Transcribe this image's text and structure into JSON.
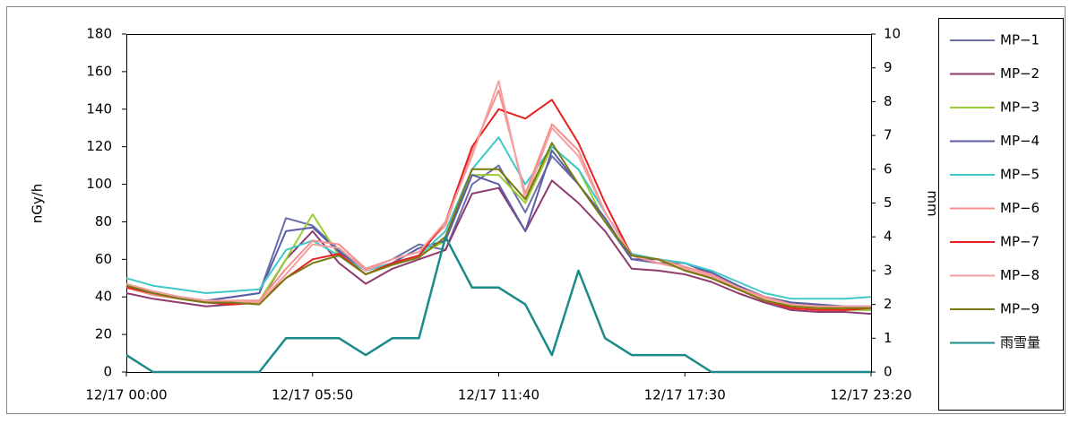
{
  "chart_data": {
    "type": "line",
    "ylabel": "nGy/h",
    "y2label": "mm",
    "categories": [
      "12/17 00:00",
      null,
      null,
      null,
      null,
      null,
      null,
      "12/17 05:50",
      null,
      null,
      null,
      null,
      null,
      null,
      "12/17 11:40",
      null,
      null,
      null,
      null,
      null,
      null,
      "12/17 17:30",
      null,
      null,
      null,
      null,
      null,
      null,
      "12/17 23:20"
    ],
    "ylim": [
      0,
      180
    ],
    "yticks": [
      0,
      20,
      40,
      60,
      80,
      100,
      120,
      140,
      160,
      180
    ],
    "y2lim": [
      0,
      10
    ],
    "y2ticks": [
      0,
      1,
      2,
      3,
      4,
      5,
      6,
      7,
      8,
      9,
      10
    ],
    "legend": "right",
    "series": [
      {
        "name": "MP−1",
        "color": "#6b6fa8",
        "values": [
          45,
          42,
          40,
          38,
          40,
          42,
          82,
          78,
          65,
          55,
          60,
          68,
          65,
          100,
          110,
          85,
          115,
          100,
          80,
          60,
          58,
          58,
          52,
          45,
          40,
          37,
          36,
          35,
          35
        ]
      },
      {
        "name": "MP−2",
        "color": "#8e3a6e",
        "values": [
          42,
          39,
          37,
          35,
          36,
          37,
          60,
          75,
          58,
          47,
          55,
          60,
          65,
          95,
          98,
          75,
          102,
          90,
          75,
          55,
          54,
          52,
          48,
          42,
          37,
          33,
          32,
          32,
          31
        ]
      },
      {
        "name": "MP−3",
        "color": "#9acd32",
        "values": [
          46,
          42,
          39,
          37,
          38,
          38,
          60,
          84,
          62,
          52,
          58,
          62,
          70,
          105,
          105,
          90,
          120,
          108,
          80,
          62,
          60,
          54,
          50,
          44,
          38,
          35,
          34,
          33,
          33
        ]
      },
      {
        "name": "MP−4",
        "color": "#5b5ea6",
        "values": [
          46,
          43,
          40,
          38,
          40,
          42,
          75,
          77,
          64,
          54,
          58,
          66,
          70,
          105,
          100,
          75,
          118,
          100,
          82,
          60,
          60,
          58,
          53,
          46,
          40,
          37,
          36,
          35,
          34
        ]
      },
      {
        "name": "MP−5",
        "color": "#40c8c8",
        "values": [
          50,
          46,
          44,
          42,
          43,
          44,
          65,
          70,
          62,
          54,
          58,
          62,
          75,
          108,
          125,
          100,
          120,
          108,
          85,
          63,
          60,
          58,
          54,
          48,
          42,
          39,
          39,
          39,
          40
        ]
      },
      {
        "name": "MP−6",
        "color": "#f4908e",
        "values": [
          45,
          41,
          39,
          37,
          38,
          38,
          55,
          70,
          68,
          55,
          60,
          64,
          78,
          118,
          150,
          95,
          132,
          118,
          85,
          62,
          60,
          56,
          52,
          45,
          40,
          36,
          35,
          34,
          34
        ]
      },
      {
        "name": "MP−7",
        "color": "#e82020",
        "values": [
          45,
          42,
          39,
          37,
          36,
          37,
          50,
          60,
          63,
          52,
          58,
          62,
          80,
          120,
          140,
          135,
          145,
          122,
          90,
          62,
          58,
          55,
          50,
          44,
          38,
          34,
          33,
          33,
          34
        ]
      },
      {
        "name": "MP−8",
        "color": "#f4a0a0",
        "values": [
          47,
          43,
          40,
          38,
          38,
          37,
          52,
          68,
          66,
          54,
          60,
          64,
          80,
          115,
          155,
          92,
          130,
          115,
          85,
          62,
          58,
          55,
          51,
          45,
          39,
          36,
          35,
          35,
          35
        ]
      },
      {
        "name": "MP−9",
        "color": "#7a7a10",
        "values": [
          46,
          42,
          39,
          37,
          37,
          36,
          50,
          58,
          62,
          52,
          57,
          61,
          72,
          108,
          108,
          92,
          122,
          100,
          80,
          62,
          60,
          54,
          50,
          44,
          38,
          35,
          34,
          34,
          34
        ]
      },
      {
        "name": "雨雪量",
        "color": "#1a8a8a",
        "axis": "y2",
        "values": [
          0.5,
          0,
          0,
          0,
          0,
          0,
          1,
          1,
          1,
          0.5,
          1,
          1,
          4,
          2.5,
          2.5,
          2,
          0.5,
          3,
          1,
          0.5,
          0.5,
          0.5,
          0,
          0,
          0,
          0,
          0,
          0,
          0
        ]
      }
    ]
  }
}
